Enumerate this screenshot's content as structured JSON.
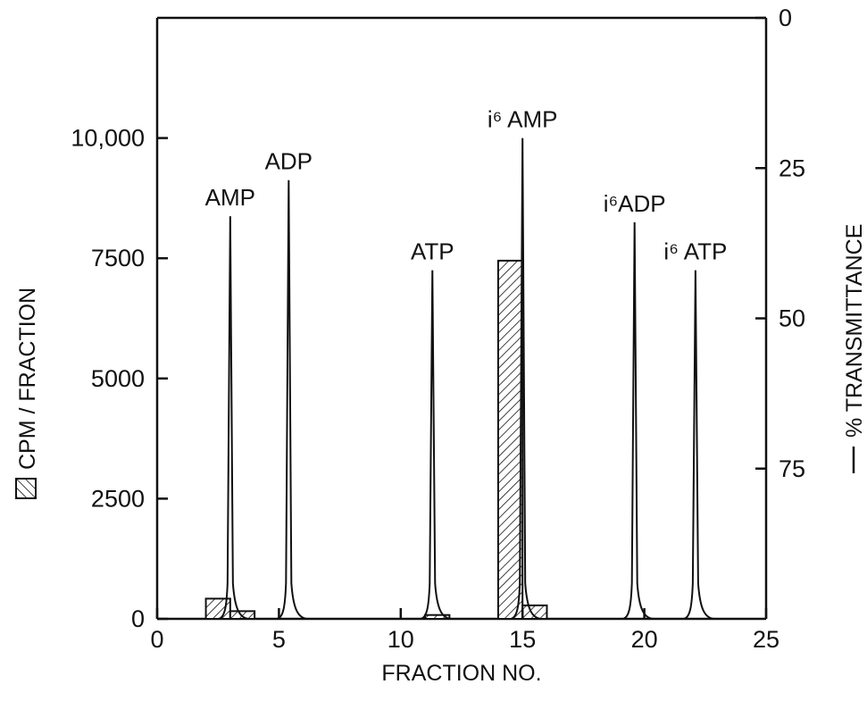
{
  "chart_data": {
    "type": "bar",
    "xlabel": "FRACTION NO.",
    "ylabel_left": "CPM / FRACTION",
    "ylabel_right": "% TRANSMITTANCE",
    "xlim": [
      0,
      25
    ],
    "ylim_left": [
      0,
      12500
    ],
    "ylim_right": [
      0,
      100
    ],
    "right_axis_inverted": true,
    "x_ticks": [
      0,
      5,
      10,
      15,
      20,
      25
    ],
    "x_tick_labels": [
      "0",
      "5",
      "10",
      "15",
      "20",
      "25"
    ],
    "y_left_ticks": [
      0,
      2500,
      5000,
      7500,
      10000
    ],
    "y_left_tick_labels": [
      "0",
      "2500",
      "5000",
      "7500",
      "10,000"
    ],
    "y_right_ticks": [
      0,
      25,
      50,
      75
    ],
    "y_right_tick_labels": [
      "0",
      "25",
      "50",
      "75"
    ],
    "bars": {
      "name": "CPM / FRACTION",
      "fractions": [
        2.5,
        3.5,
        11.5,
        14.5,
        15.5
      ],
      "width": 1,
      "values": [
        420,
        160,
        80,
        7450,
        280
      ]
    },
    "peaks": {
      "name": "% TRANSMITTANCE",
      "items": [
        {
          "label": "AMP",
          "x": 3.0,
          "transmittance": 33
        },
        {
          "label": "ADP",
          "x": 5.4,
          "transmittance": 27
        },
        {
          "label": "ATP",
          "x": 11.3,
          "transmittance": 42
        },
        {
          "label": "i⁶ AMP",
          "x": 15.0,
          "transmittance": 20
        },
        {
          "label": "i⁶ADP",
          "x": 19.6,
          "transmittance": 34
        },
        {
          "label": "i⁶ ATP",
          "x": 22.1,
          "transmittance": 42
        }
      ]
    },
    "baseline_transmittance": 100,
    "grid": false,
    "legend": "axis labels (hatched box = CPM, line = % transmittance)"
  }
}
